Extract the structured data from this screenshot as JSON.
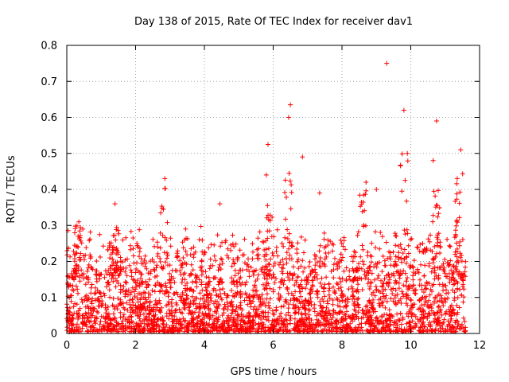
{
  "chart_data": {
    "type": "scatter",
    "title": "Day 138 of 2015, Rate Of TEC Index for receiver dav1",
    "xlabel": "GPS time / hours",
    "ylabel": "ROTI / TECUs",
    "xlim": [
      0,
      12
    ],
    "ylim": [
      0,
      0.8
    ],
    "x_ticks": [
      0,
      2,
      4,
      6,
      8,
      10,
      12
    ],
    "x_tick_labels": [
      "0",
      "2",
      "4",
      "6",
      "8",
      "10",
      "12"
    ],
    "y_ticks": [
      0,
      0.1,
      0.2,
      0.3,
      0.4,
      0.5,
      0.6,
      0.7,
      0.8
    ],
    "y_tick_labels": [
      "0",
      "0.1",
      "0.2",
      "0.3",
      "0.4",
      "0.5",
      "0.6",
      "0.7",
      "0.8"
    ],
    "grid": true,
    "marker": "+",
    "marker_color": "#ff0000",
    "data_time_range_hours": [
      0,
      11.6
    ],
    "typical_roti_range": [
      0.0,
      0.3
    ],
    "notable_points": [
      {
        "x": 9.3,
        "y": 0.75
      },
      {
        "x": 6.5,
        "y": 0.635
      },
      {
        "x": 9.8,
        "y": 0.62
      },
      {
        "x": 10.75,
        "y": 0.59
      },
      {
        "x": 6.45,
        "y": 0.6
      },
      {
        "x": 5.85,
        "y": 0.525
      },
      {
        "x": 11.45,
        "y": 0.51
      },
      {
        "x": 6.85,
        "y": 0.49
      },
      {
        "x": 10.65,
        "y": 0.48
      },
      {
        "x": 9.9,
        "y": 0.5
      },
      {
        "x": 2.85,
        "y": 0.43
      },
      {
        "x": 5.8,
        "y": 0.44
      },
      {
        "x": 8.7,
        "y": 0.42
      },
      {
        "x": 11.35,
        "y": 0.43
      },
      {
        "x": 7.35,
        "y": 0.39
      },
      {
        "x": 1.4,
        "y": 0.36
      },
      {
        "x": 9.0,
        "y": 0.4
      },
      {
        "x": 0.35,
        "y": 0.31
      },
      {
        "x": 4.45,
        "y": 0.36
      }
    ]
  }
}
